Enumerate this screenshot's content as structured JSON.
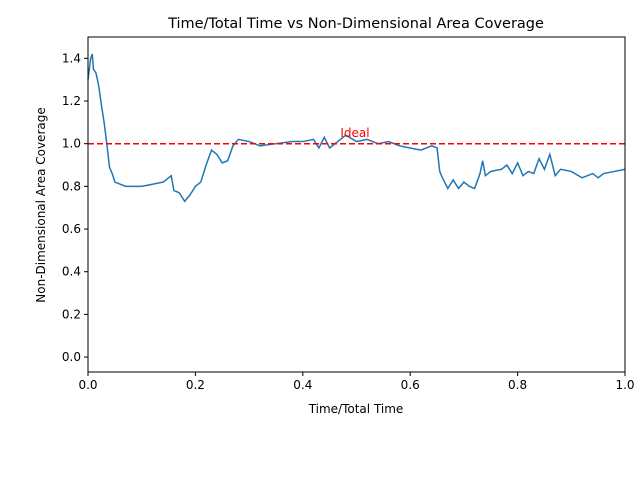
{
  "chart_data": {
    "type": "line",
    "title": "Time/Total Time vs Non-Dimensional Area Coverage",
    "x_label": "Time/Total Time",
    "y_label": "Non-Dimensional Area Coverage",
    "x": [
      0,
      0.005,
      0.008,
      0.01,
      0.015,
      0.02,
      0.025,
      0.03,
      0.035,
      0.04,
      0.045,
      0.05,
      0.06,
      0.07,
      0.1,
      0.12,
      0.14,
      0.155,
      0.16,
      0.17,
      0.18,
      0.19,
      0.2,
      0.21,
      0.22,
      0.23,
      0.24,
      0.25,
      0.26,
      0.27,
      0.28,
      0.3,
      0.32,
      0.35,
      0.38,
      0.4,
      0.42,
      0.43,
      0.44,
      0.45,
      0.47,
      0.48,
      0.5,
      0.52,
      0.54,
      0.56,
      0.58,
      0.6,
      0.62,
      0.64,
      0.65,
      0.655,
      0.66,
      0.67,
      0.68,
      0.69,
      0.7,
      0.71,
      0.72,
      0.73,
      0.735,
      0.74,
      0.75,
      0.77,
      0.78,
      0.79,
      0.8,
      0.81,
      0.82,
      0.83,
      0.84,
      0.85,
      0.86,
      0.87,
      0.88,
      0.9,
      0.92,
      0.94,
      0.95,
      0.96,
      0.98,
      1.0
    ],
    "series": [
      {
        "color": "#1f77b4",
        "values": [
          1.3,
          1.4,
          1.42,
          1.35,
          1.33,
          1.27,
          1.18,
          1.1,
          1.0,
          0.89,
          0.86,
          0.82,
          0.81,
          0.8,
          0.8,
          0.81,
          0.82,
          0.85,
          0.78,
          0.77,
          0.73,
          0.76,
          0.8,
          0.82,
          0.9,
          0.97,
          0.95,
          0.91,
          0.92,
          0.99,
          1.02,
          1.01,
          0.99,
          1.0,
          1.01,
          1.01,
          1.02,
          0.98,
          1.03,
          0.98,
          1.02,
          1.04,
          1.01,
          1.02,
          1.0,
          1.01,
          0.99,
          0.98,
          0.97,
          0.99,
          0.98,
          0.87,
          0.84,
          0.79,
          0.83,
          0.79,
          0.82,
          0.8,
          0.79,
          0.86,
          0.92,
          0.85,
          0.87,
          0.88,
          0.9,
          0.86,
          0.91,
          0.85,
          0.87,
          0.86,
          0.93,
          0.88,
          0.95,
          0.85,
          0.88,
          0.87,
          0.84,
          0.86,
          0.84,
          0.86,
          0.87,
          0.88
        ]
      }
    ],
    "reference_line": {
      "value": 1.0,
      "color": "#ff0000"
    },
    "annotation": {
      "text": "Ideal",
      "x": 0.47,
      "y": 1.05,
      "color": "#ff0000"
    },
    "xlim": [
      0,
      1
    ],
    "ylim": [
      -0.07,
      1.5
    ],
    "xticks": [
      {
        "value": 0,
        "label": "0.0"
      },
      0.2,
      0.4,
      0.6,
      0.8,
      {
        "value": 1,
        "label": "1.0"
      }
    ],
    "yticks": [
      {
        "value": 0,
        "label": "0.0"
      },
      0.2,
      0.4,
      0.6,
      0.8,
      {
        "value": 1,
        "label": "1.0"
      },
      1.2,
      1.4
    ]
  }
}
